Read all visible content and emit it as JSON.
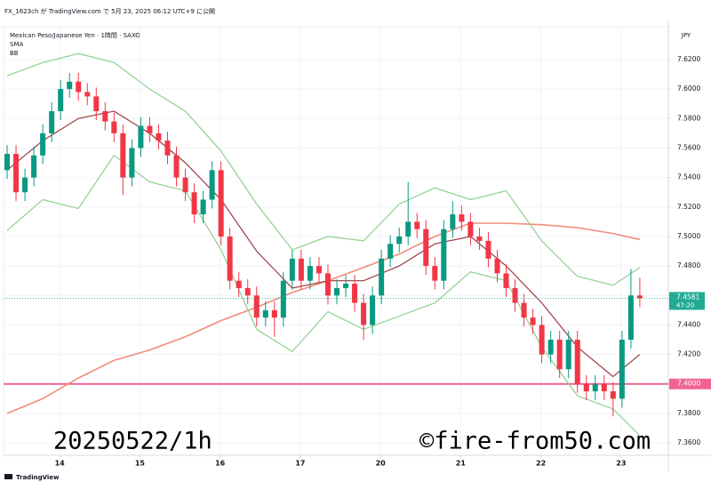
{
  "header": "FX_1623ch が TradingView.com で 5月 23, 2025 06:12 UTC+9 に公開",
  "footer": "TradingView",
  "chart_data": {
    "type": "candlestick",
    "title": "Mexican Peso/Japanese Yen · 1時間 · SAXO",
    "indicators": [
      "SMA",
      "BB"
    ],
    "currency": "JPY",
    "up_color": "#089981",
    "down_color": "#f23645",
    "grid": true,
    "xlim": [
      -0.4,
      74.2
    ],
    "xticks": [
      {
        "value": 5.9,
        "label": "14"
      },
      {
        "value": 14.9,
        "label": "15"
      },
      {
        "value": 23.9,
        "label": "16"
      },
      {
        "value": 32.9,
        "label": "17"
      },
      {
        "value": 41.9,
        "label": "20"
      },
      {
        "value": 50.9,
        "label": "21"
      },
      {
        "value": 59.9,
        "label": "22"
      },
      {
        "value": 68.9,
        "label": "23"
      }
    ],
    "ylim": [
      7.3516,
      7.6423
    ],
    "yticks": [
      {
        "value": 7.36,
        "label": "7.3600"
      },
      {
        "value": 7.38,
        "label": "7.3800"
      },
      {
        "value": 7.4,
        "label": "7.4000"
      },
      {
        "value": 7.42,
        "label": "7.4200"
      },
      {
        "value": 7.44,
        "label": "7.4400"
      },
      {
        "value": 7.46,
        "label": "7.4600"
      },
      {
        "value": 7.48,
        "label": "7.4800"
      },
      {
        "value": 7.5,
        "label": "7.5000"
      },
      {
        "value": 7.52,
        "label": "7.5200"
      },
      {
        "value": 7.54,
        "label": "7.5400"
      },
      {
        "value": 7.56,
        "label": "7.5600"
      },
      {
        "value": 7.58,
        "label": "7.5800"
      },
      {
        "value": 7.6,
        "label": "7.6000"
      },
      {
        "value": 7.62,
        "label": "7.6200"
      }
    ],
    "candles": {
      "open": [
        7.545,
        7.556,
        7.53,
        7.54,
        7.555,
        7.57,
        7.585,
        7.6,
        7.605,
        7.598,
        7.595,
        7.585,
        7.578,
        7.57,
        7.54,
        7.56,
        7.575,
        7.57,
        7.565,
        7.555,
        7.54,
        7.53,
        7.515,
        7.525,
        7.545,
        7.5,
        7.47,
        7.465,
        7.46,
        7.445,
        7.45,
        7.445,
        7.47,
        7.485,
        7.47,
        7.48,
        7.475,
        7.46,
        7.465,
        7.468,
        7.455,
        7.44,
        7.46,
        7.485,
        7.495,
        7.5,
        7.51,
        7.505,
        7.48,
        7.47,
        7.505,
        7.515,
        7.51,
        7.5,
        7.497,
        7.485,
        7.475,
        7.465,
        7.455,
        7.445,
        7.44,
        7.42,
        7.43,
        7.41,
        7.43,
        7.4,
        7.395,
        7.4,
        7.395,
        7.39,
        7.43,
        7.46
      ],
      "high": [
        7.562,
        7.562,
        7.546,
        7.561,
        7.576,
        7.591,
        7.606,
        7.611,
        7.611,
        7.604,
        7.601,
        7.591,
        7.584,
        7.576,
        7.566,
        7.581,
        7.581,
        7.576,
        7.571,
        7.561,
        7.546,
        7.536,
        7.531,
        7.551,
        7.551,
        7.506,
        7.476,
        7.471,
        7.466,
        7.456,
        7.456,
        7.476,
        7.491,
        7.491,
        7.486,
        7.486,
        7.481,
        7.471,
        7.474,
        7.474,
        7.461,
        7.466,
        7.491,
        7.501,
        7.506,
        7.537,
        7.516,
        7.511,
        7.486,
        7.511,
        7.524,
        7.521,
        7.516,
        7.506,
        7.503,
        7.491,
        7.481,
        7.471,
        7.461,
        7.451,
        7.446,
        7.436,
        7.436,
        7.436,
        7.436,
        7.406,
        7.406,
        7.406,
        7.401,
        7.436,
        7.478,
        7.472
      ],
      "low": [
        7.539,
        7.524,
        7.524,
        7.534,
        7.549,
        7.564,
        7.579,
        7.594,
        7.592,
        7.589,
        7.579,
        7.572,
        7.564,
        7.528,
        7.534,
        7.554,
        7.564,
        7.559,
        7.549,
        7.534,
        7.524,
        7.509,
        7.509,
        7.519,
        7.494,
        7.464,
        7.459,
        7.454,
        7.439,
        7.439,
        7.432,
        7.439,
        7.464,
        7.464,
        7.464,
        7.469,
        7.454,
        7.454,
        7.459,
        7.449,
        7.43,
        7.434,
        7.454,
        7.479,
        7.489,
        7.494,
        7.499,
        7.474,
        7.464,
        7.464,
        7.499,
        7.504,
        7.494,
        7.491,
        7.479,
        7.469,
        7.459,
        7.449,
        7.439,
        7.434,
        7.414,
        7.414,
        7.404,
        7.404,
        7.394,
        7.389,
        7.389,
        7.389,
        7.378,
        7.384,
        7.424,
        7.452
      ],
      "close": [
        7.556,
        7.53,
        7.54,
        7.555,
        7.57,
        7.585,
        7.6,
        7.605,
        7.598,
        7.595,
        7.585,
        7.578,
        7.57,
        7.54,
        7.56,
        7.575,
        7.57,
        7.565,
        7.555,
        7.54,
        7.53,
        7.515,
        7.525,
        7.545,
        7.5,
        7.47,
        7.465,
        7.46,
        7.445,
        7.45,
        7.445,
        7.47,
        7.485,
        7.47,
        7.48,
        7.475,
        7.46,
        7.465,
        7.468,
        7.455,
        7.44,
        7.46,
        7.485,
        7.495,
        7.5,
        7.51,
        7.505,
        7.48,
        7.47,
        7.505,
        7.515,
        7.51,
        7.5,
        7.497,
        7.485,
        7.475,
        7.465,
        7.455,
        7.445,
        7.44,
        7.42,
        7.43,
        7.41,
        7.43,
        7.4,
        7.395,
        7.4,
        7.395,
        7.39,
        7.43,
        7.46,
        7.4581
      ]
    },
    "lines": [
      {
        "color": "#f28b7d",
        "x": [
          0,
          4,
          8,
          12,
          16,
          20,
          24,
          28,
          32,
          36,
          40,
          44,
          48,
          52,
          56,
          60,
          64,
          68,
          71
        ],
        "values": [
          7.38,
          7.39,
          7.404,
          7.416,
          7.423,
          7.432,
          7.443,
          7.452,
          7.462,
          7.47,
          7.479,
          7.488,
          7.5,
          7.509,
          7.509,
          7.508,
          7.506,
          7.502,
          7.498
        ]
      },
      {
        "color": "#9c3a3f",
        "x": [
          0,
          4,
          8,
          12,
          16,
          20,
          24,
          28,
          32,
          36,
          40,
          44,
          48,
          52,
          56,
          60,
          64,
          68,
          71
        ],
        "values": [
          7.545,
          7.565,
          7.58,
          7.585,
          7.57,
          7.55,
          7.525,
          7.49,
          7.465,
          7.47,
          7.47,
          7.48,
          7.495,
          7.5,
          7.48,
          7.455,
          7.425,
          7.405,
          7.42
        ]
      },
      {
        "color": "#8fd08f",
        "x": [
          0,
          4,
          8,
          12,
          16,
          20,
          24,
          28,
          32,
          36,
          40,
          44,
          48,
          52,
          56,
          60,
          64,
          68,
          71
        ],
        "values": [
          7.609,
          7.618,
          7.624,
          7.618,
          7.6,
          7.585,
          7.558,
          7.522,
          7.491,
          7.5,
          7.497,
          7.522,
          7.533,
          7.525,
          7.531,
          7.497,
          7.473,
          7.467,
          7.479
        ]
      },
      {
        "color": "#8fd08f",
        "x": [
          0,
          4,
          8,
          12,
          16,
          20,
          24,
          28,
          32,
          36,
          40,
          44,
          48,
          52,
          56,
          60,
          64,
          68,
          71
        ],
        "values": [
          7.504,
          7.525,
          7.519,
          7.555,
          7.537,
          7.531,
          7.491,
          7.437,
          7.422,
          7.449,
          7.437,
          7.446,
          7.455,
          7.476,
          7.47,
          7.425,
          7.392,
          7.383,
          7.365
        ]
      }
    ],
    "hlines": [
      {
        "value": 7.4,
        "label": "7.4000",
        "color": "#f06292"
      }
    ],
    "last_price": {
      "value": 7.4581,
      "label": "7.4581",
      "countdown": "47:20",
      "color": "#22ab94"
    },
    "annotations": [
      "20250522/1h",
      "©fire-from50.com"
    ]
  }
}
